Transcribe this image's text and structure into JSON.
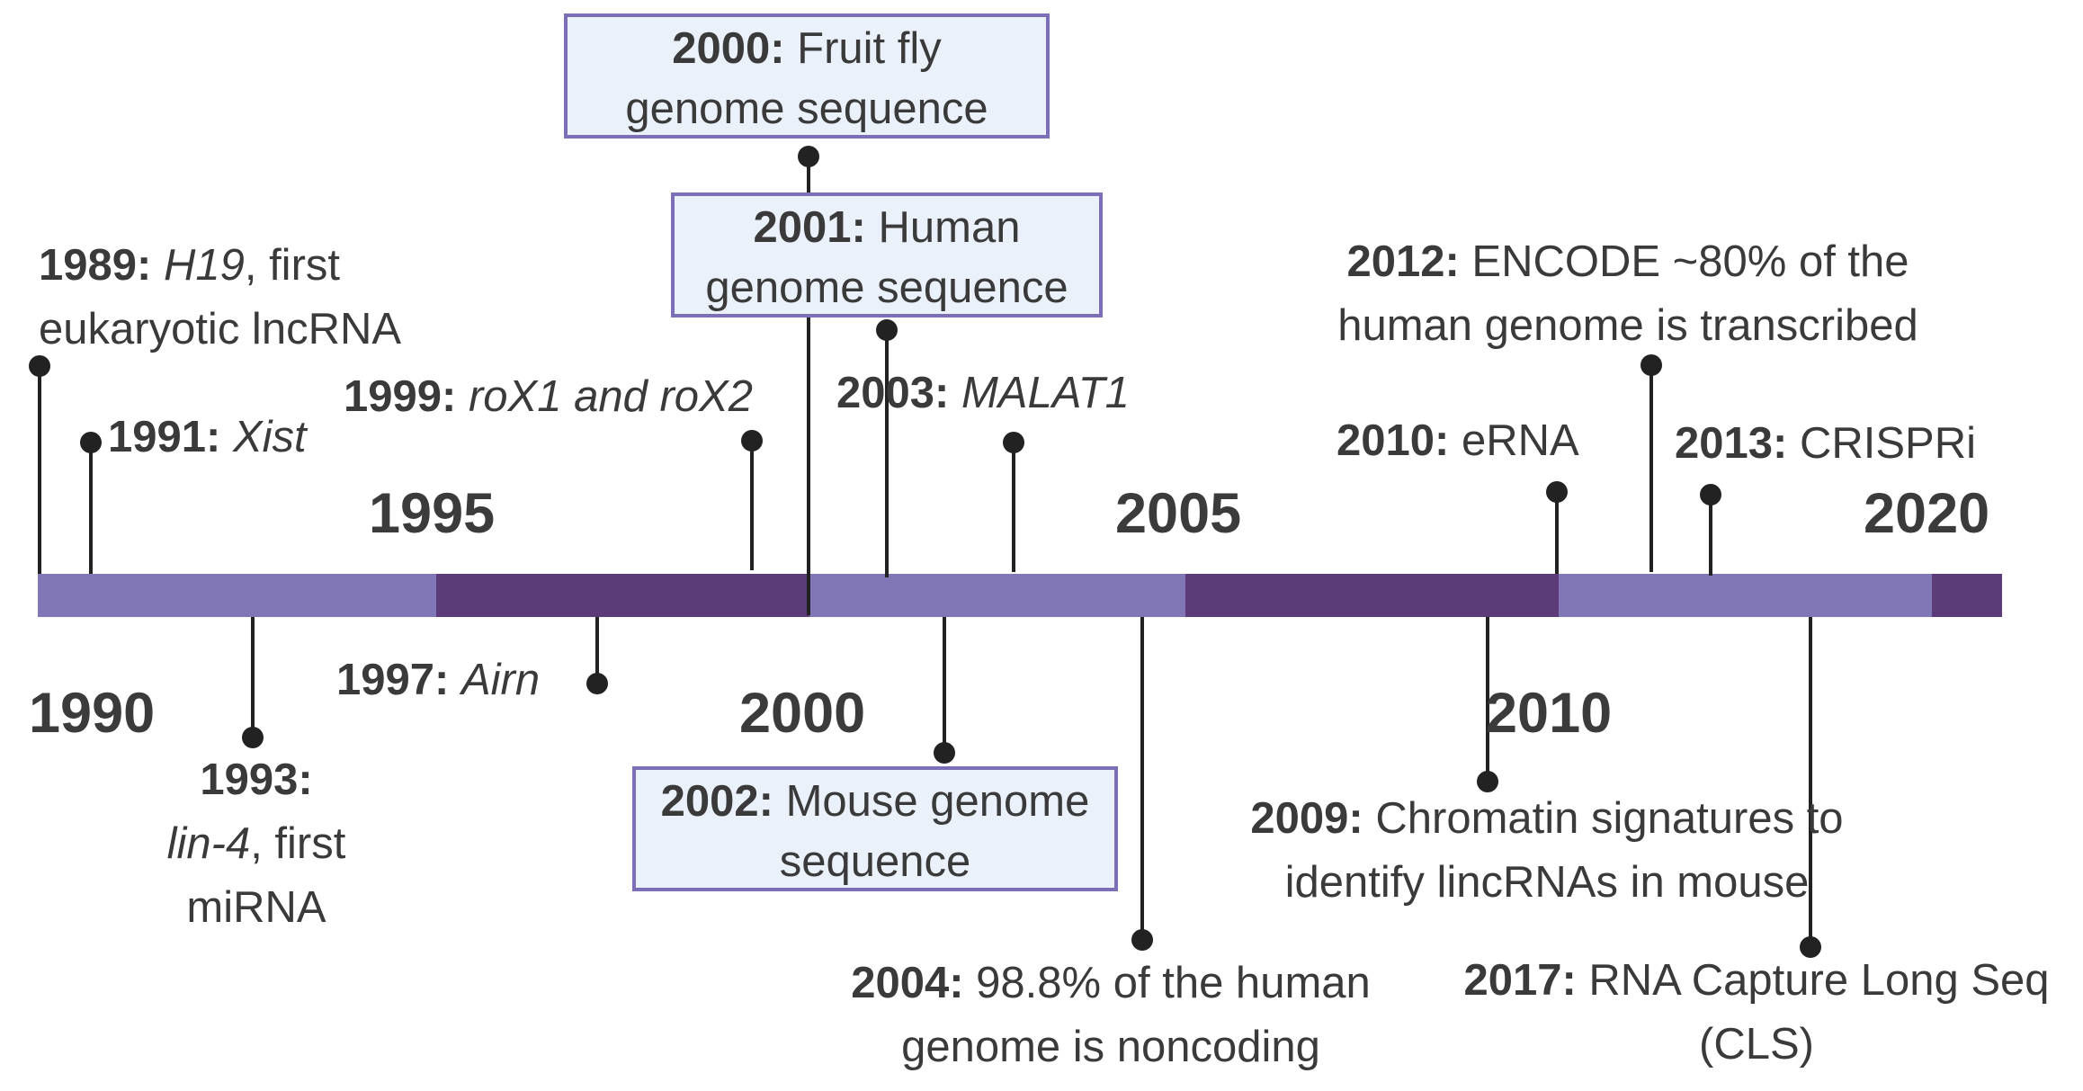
{
  "colors": {
    "light_segment": "#8177b7",
    "dark_segment": "#5b3b78",
    "stem": "#222222",
    "box_fill": "#eaf1fb",
    "box_border": "#7d6fb7"
  },
  "axis_years": [
    "1990",
    "1995",
    "2000",
    "2005",
    "2010",
    "2020"
  ],
  "events": [
    {
      "id": "e1989",
      "year": "1989:",
      "parts": [
        {
          "t": " "
        },
        {
          "t": "H19",
          "i": true
        },
        {
          "t": ", first"
        }
      ],
      "line2": [
        {
          "t": "eukaryotic lncRNA"
        }
      ]
    },
    {
      "id": "e1991",
      "year": "1991:",
      "parts": [
        {
          "t": " "
        },
        {
          "t": "Xist",
          "i": true
        }
      ]
    },
    {
      "id": "e1993",
      "year": "1993:",
      "line2": [
        {
          "t": "lin-4",
          "i": true
        },
        {
          "t": ", first"
        }
      ],
      "line3": [
        {
          "t": "miRNA"
        }
      ]
    },
    {
      "id": "e1997",
      "year": "1997:",
      "parts": [
        {
          "t": " "
        },
        {
          "t": "Airn",
          "i": true
        }
      ]
    },
    {
      "id": "e1999",
      "year": "1999:",
      "parts": [
        {
          "t": " "
        },
        {
          "t": "roX1 and roX2",
          "i": true
        }
      ]
    },
    {
      "id": "e2000",
      "year": "2000:",
      "parts": [
        {
          "t": " Fruit fly"
        }
      ],
      "line2": [
        {
          "t": "genome sequence"
        }
      ]
    },
    {
      "id": "e2001",
      "year": "2001:",
      "parts": [
        {
          "t": " Human"
        }
      ],
      "line2": [
        {
          "t": "genome sequence"
        }
      ]
    },
    {
      "id": "e2002",
      "year": "2002:",
      "parts": [
        {
          "t": " Mouse genome"
        }
      ],
      "line2": [
        {
          "t": "sequence"
        }
      ]
    },
    {
      "id": "e2003",
      "year": "2003:",
      "parts": [
        {
          "t": " "
        },
        {
          "t": "MALAT1",
          "i": true
        }
      ]
    },
    {
      "id": "e2004",
      "year": "2004:",
      "parts": [
        {
          "t": " 98.8% of the human"
        }
      ],
      "line2": [
        {
          "t": "genome is noncoding"
        }
      ]
    },
    {
      "id": "e2009",
      "year": "2009:",
      "parts": [
        {
          "t": " Chromatin signatures to"
        }
      ],
      "line2": [
        {
          "t": "identify lincRNAs in mouse"
        }
      ]
    },
    {
      "id": "e2010",
      "year": "2010:",
      "parts": [
        {
          "t": " eRNA"
        }
      ]
    },
    {
      "id": "e2012",
      "year": "2012:",
      "parts": [
        {
          "t": " ENCODE ~80% of the"
        }
      ],
      "line2": [
        {
          "t": "human genome is transcribed"
        }
      ]
    },
    {
      "id": "e2013",
      "year": "2013:",
      "parts": [
        {
          "t": " CRISPRi"
        }
      ]
    },
    {
      "id": "e2017",
      "year": "2017:",
      "parts": [
        {
          "t": " RNA Capture Long Seq"
        }
      ],
      "line2": [
        {
          "t": "(CLS)"
        }
      ]
    }
  ]
}
